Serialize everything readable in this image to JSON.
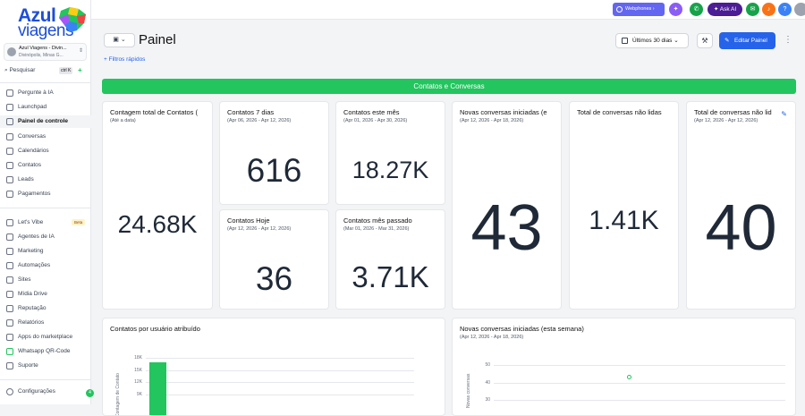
{
  "brand": {
    "line1": "Azul",
    "line2": "viagens"
  },
  "account": {
    "name": "Azul Viagens - Divin...",
    "location": "Divinópolis, Minas G..."
  },
  "search": {
    "label": "Pesquisar",
    "shortcut": "ctrl K"
  },
  "sidebar": {
    "items": [
      {
        "label": "Pergunte à IA",
        "icon": "sparkle-icon"
      },
      {
        "label": "Launchpad",
        "icon": "rocket-icon"
      },
      {
        "label": "Painel de controle",
        "icon": "dashboard-icon",
        "active": true
      },
      {
        "label": "Conversas",
        "icon": "chat-icon"
      },
      {
        "label": "Calendários",
        "icon": "calendar-icon"
      },
      {
        "label": "Contatos",
        "icon": "contacts-icon"
      },
      {
        "label": "Leads",
        "icon": "leads-icon"
      },
      {
        "label": "Pagamentos",
        "icon": "payments-icon"
      }
    ],
    "items2": [
      {
        "label": "Let's Vibe",
        "icon": "vibe-icon",
        "badge": "Beta"
      },
      {
        "label": "Agentes de IA",
        "icon": "ai-agent-icon"
      },
      {
        "label": "Marketing",
        "icon": "marketing-icon"
      },
      {
        "label": "Automações",
        "icon": "automation-icon"
      },
      {
        "label": "Sites",
        "icon": "globe-icon"
      },
      {
        "label": "Mídia Drive",
        "icon": "media-icon"
      },
      {
        "label": "Reputação",
        "icon": "star-icon"
      },
      {
        "label": "Relatórios",
        "icon": "chart-icon"
      },
      {
        "label": "Apps do marketplace",
        "icon": "apps-icon"
      },
      {
        "label": "Whatsapp QR-Code",
        "icon": "whatsapp-icon"
      },
      {
        "label": "Suporte",
        "icon": "wrench-icon"
      }
    ],
    "settings": {
      "label": "Configurações",
      "count": "4"
    }
  },
  "topbar": {
    "webphones": "Webphones",
    "ask_ai": "Ask AI"
  },
  "header": {
    "title": "Painel",
    "filters": "Filtros rápidos",
    "date_range": "Últimos 30 dias",
    "edit": "Editar Painel"
  },
  "banner": "Contatos e Conversas",
  "cards": {
    "total_contacts": {
      "title": "Contagem total de Contatos (",
      "sub": "(Até a data)",
      "value": "24.68K"
    },
    "contacts_7d": {
      "title": "Contatos 7 dias",
      "sub": "(Apr 06, 2026 - Apr 12, 2026)",
      "value": "616"
    },
    "contacts_month": {
      "title": "Contatos este mês",
      "sub": "(Apr 01, 2026 - Apr 30, 2026)",
      "value": "18.27K"
    },
    "new_convos": {
      "title": "Novas conversas iniciadas (e",
      "sub": "(Apr 12, 2026 - Apr 18, 2026)",
      "value": "43"
    },
    "unread_total": {
      "title": "Total de conversas não lidas",
      "sub": "",
      "value": "1.41K"
    },
    "unread_total2": {
      "title": "Total de conversas não lid",
      "sub": "(Apr 12, 2026 - Apr 12, 2026)",
      "value": "40"
    },
    "contacts_today": {
      "title": "Contatos Hoje",
      "sub": "(Apr 12, 2026 - Apr 12, 2026)",
      "value": "36"
    },
    "contacts_last_month": {
      "title": "Contatos mês passado",
      "sub": "(Mar 01, 2026 - Mar 31, 2026)",
      "value": "3.71K"
    }
  },
  "charts": {
    "by_user": {
      "title": "Contatos por usuário atribuído"
    },
    "new_week": {
      "title": "Novas conversas iniciadas (esta semana)",
      "sub": "(Apr 12, 2026 - Apr 18, 2026)"
    }
  },
  "chart_data": [
    {
      "type": "bar",
      "title": "Contatos por usuário atribuído",
      "ylabel": "Contagem de Contato",
      "yticks": [
        "18K",
        "15K",
        "12K",
        "9K"
      ],
      "ylim": [
        0,
        18000
      ],
      "categories": [
        ""
      ],
      "values": [
        17000
      ]
    },
    {
      "type": "scatter",
      "title": "Novas conversas iniciadas (esta semana)",
      "ylabel": "Novas conversas",
      "yticks": [
        "50",
        "40",
        "30"
      ],
      "ylim": [
        0,
        50
      ],
      "x": [
        ""
      ],
      "values": [
        43
      ]
    }
  ]
}
